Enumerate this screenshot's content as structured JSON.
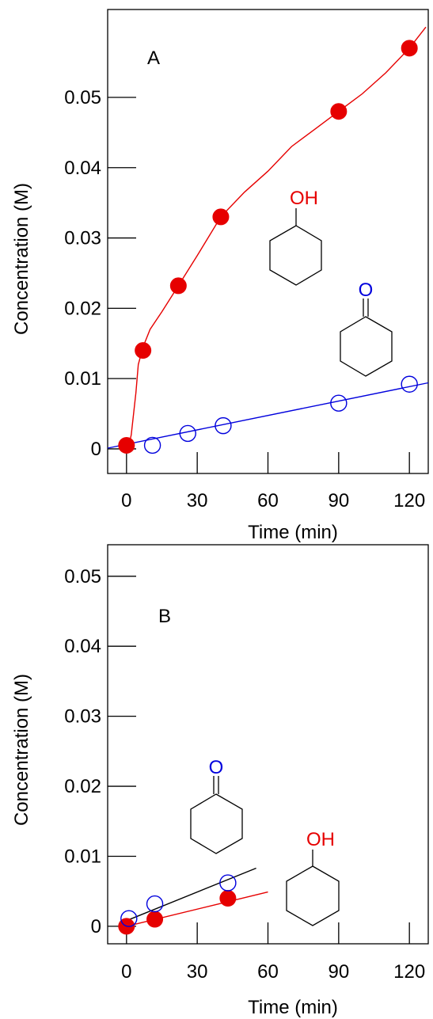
{
  "colors": {
    "cyclohexanol": "#e60000",
    "cyclohexanone": "#0000dd",
    "axis": "#000000",
    "panel_b_ketone_fit": "#000000"
  },
  "chart_data": [
    {
      "type": "scatter",
      "panel_label": "A",
      "xlabel": "Time (min)",
      "ylabel": "Concentration (M)",
      "xlim": [
        -8,
        128
      ],
      "ylim": [
        -0.0035,
        0.0625
      ],
      "x_ticks": [
        0,
        30,
        60,
        90,
        120
      ],
      "x_tick_labels": [
        "0",
        "30",
        "60",
        "90",
        "120"
      ],
      "y_ticks": [
        0,
        0.01,
        0.02,
        0.03,
        0.04,
        0.05
      ],
      "y_tick_labels": [
        "0",
        "0.01",
        "0.02",
        "0.03",
        "0.04",
        "0.05"
      ],
      "grid": false,
      "series": [
        {
          "marker": "filled-circle",
          "color": "#e60000",
          "x": [
            0,
            7,
            22,
            40,
            90,
            120
          ],
          "y": [
            0.0005,
            0.014,
            0.0232,
            0.033,
            0.048,
            0.057
          ],
          "fit": {
            "x": [
              1,
              2,
              4,
              5,
              7,
              10,
              15,
              22,
              30,
              40,
              50,
              60,
              70,
              80,
              90,
              100,
              110,
              120,
              127
            ],
            "y": [
              0.0005,
              0.002,
              0.008,
              0.012,
              0.0145,
              0.017,
              0.0195,
              0.0232,
              0.0275,
              0.033,
              0.0365,
              0.0395,
              0.043,
              0.0455,
              0.048,
              0.0505,
              0.0535,
              0.057,
              0.06
            ]
          }
        },
        {
          "marker": "open-circle",
          "color": "#0000dd",
          "x": [
            11,
            26,
            41,
            90,
            120
          ],
          "y": [
            0.0005,
            0.0022,
            0.0033,
            0.0065,
            0.0092
          ],
          "fit": {
            "x": [
              -8,
              128
            ],
            "y": [
              0.0001,
              0.0094
            ]
          }
        }
      ],
      "structures": [
        {
          "name": "cyclohexanol",
          "label": "OH",
          "color": "#e60000"
        },
        {
          "name": "cyclohexanone",
          "label": "O",
          "color": "#0000dd"
        }
      ]
    },
    {
      "type": "scatter",
      "panel_label": "B",
      "xlabel": "Time (min)",
      "ylabel": "Concentration (M)",
      "xlim": [
        -8,
        128
      ],
      "ylim": [
        -0.0025,
        0.0545
      ],
      "x_ticks": [
        0,
        30,
        60,
        90,
        120
      ],
      "x_tick_labels": [
        "0",
        "30",
        "60",
        "90",
        "120"
      ],
      "y_ticks": [
        0,
        0.01,
        0.02,
        0.03,
        0.04,
        0.05
      ],
      "y_tick_labels": [
        "0",
        "0.01",
        "0.02",
        "0.03",
        "0.04",
        "0.05"
      ],
      "grid": false,
      "series": [
        {
          "marker": "filled-circle",
          "color": "#e60000",
          "x": [
            0,
            12,
            43
          ],
          "y": [
            0.0,
            0.001,
            0.004
          ],
          "fit": {
            "x": [
              0,
              60
            ],
            "y": [
              0.0,
              0.0049
            ]
          }
        },
        {
          "marker": "open-circle",
          "color": "#0000dd",
          "x": [
            1,
            12,
            43
          ],
          "y": [
            0.0011,
            0.0032,
            0.0062
          ],
          "fit": {
            "x": [
              0,
              55
            ],
            "y": [
              0.0008,
              0.0083
            ]
          }
        }
      ],
      "structures": [
        {
          "name": "cyclohexanone",
          "label": "O",
          "color": "#0000dd"
        },
        {
          "name": "cyclohexanol",
          "label": "OH",
          "color": "#e60000"
        }
      ]
    }
  ]
}
